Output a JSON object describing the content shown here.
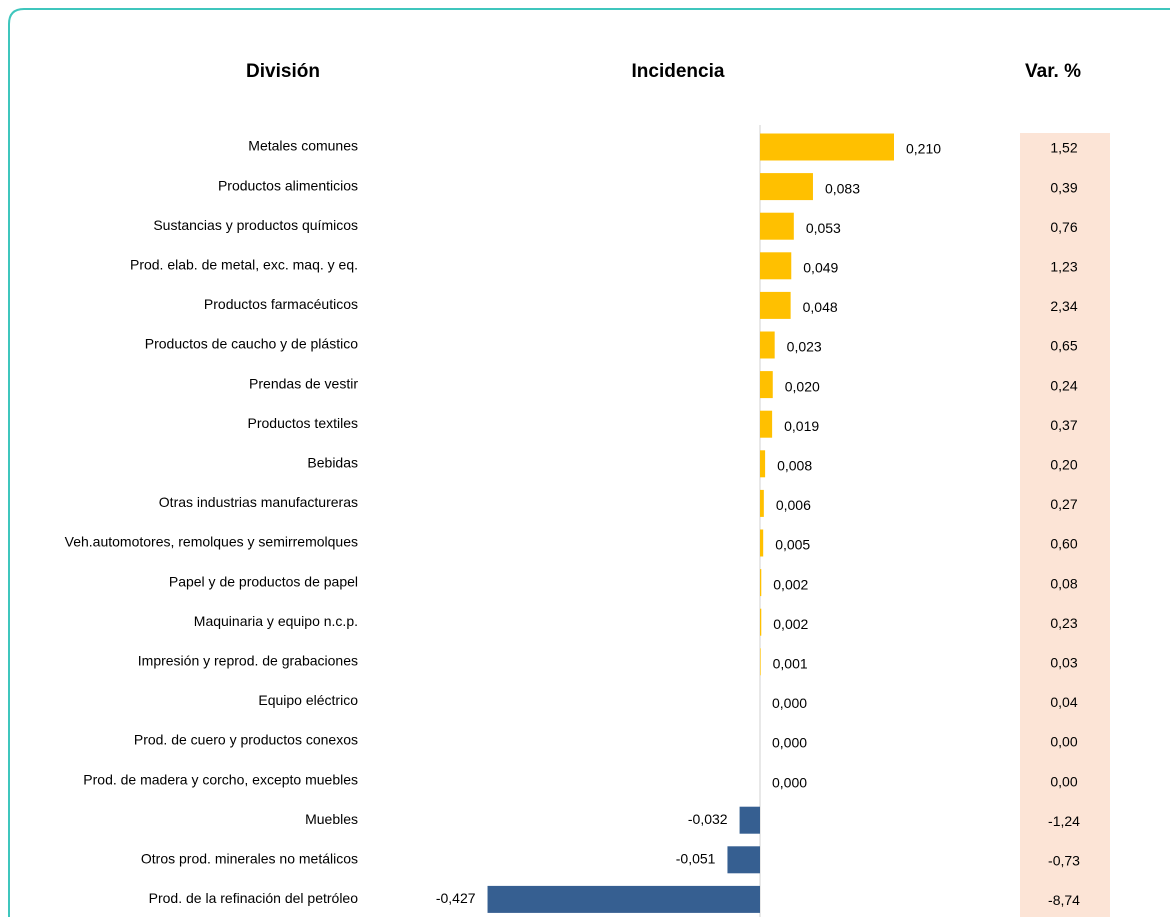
{
  "chart_data": {
    "type": "bar",
    "orientation": "horizontal",
    "column_titles": [
      "División",
      "Incidencia",
      "Var. %"
    ],
    "categories": [
      "Metales comunes",
      "Productos alimenticios",
      "Sustancias y productos químicos",
      "Prod. elab. de metal, exc. maq. y eq.",
      "Productos farmacéuticos",
      "Productos de caucho y de plástico",
      "Prendas de vestir",
      "Productos textiles",
      "Bebidas",
      "Otras industrias manufactureras",
      "Veh.automotores, remolques y semirremolques",
      "Papel y de productos de papel",
      "Maquinaria y equipo n.c.p.",
      "Impresión y reprod. de grabaciones",
      "Equipo eléctrico",
      "Prod. de cuero y productos conexos",
      "Prod. de madera y corcho, excepto muebles",
      "Muebles",
      "Otros prod. minerales no metálicos",
      "Prod. de la refinación del petróleo"
    ],
    "values": [
      0.21,
      0.083,
      0.053,
      0.049,
      0.048,
      0.023,
      0.02,
      0.019,
      0.008,
      0.006,
      0.005,
      0.002,
      0.002,
      0.001,
      0.0,
      0.0,
      0.0,
      -0.032,
      -0.051,
      -0.427
    ],
    "value_labels": [
      "0,210",
      "0,083",
      "0,053",
      "0,049",
      "0,048",
      "0,023",
      "0,020",
      "0,019",
      "0,008",
      "0,006",
      "0,005",
      "0,002",
      "0,002",
      "0,001",
      "0,000",
      "0,000",
      "0,000",
      "-0,032",
      "-0,051",
      "-0,427"
    ],
    "color": "#ffc000",
    "negative_color": "#365f91",
    "var_values": [
      1.52,
      0.39,
      0.76,
      1.23,
      2.34,
      0.65,
      0.24,
      0.37,
      0.2,
      0.27,
      0.6,
      0.08,
      0.23,
      0.03,
      0.04,
      0.0,
      0.0,
      -1.24,
      -0.73,
      -8.74
    ],
    "var_labels": [
      "1,52",
      "0,39",
      "0,76",
      "1,23",
      "2,34",
      "0,65",
      "0,24",
      "0,37",
      "0,20",
      "0,27",
      "0,60",
      "0,08",
      "0,23",
      "0,03",
      "0,04",
      "0,00",
      "0,00",
      "-1,24",
      "-0,73",
      "-8,74"
    ],
    "var_cell_color": "#fce4d6"
  }
}
